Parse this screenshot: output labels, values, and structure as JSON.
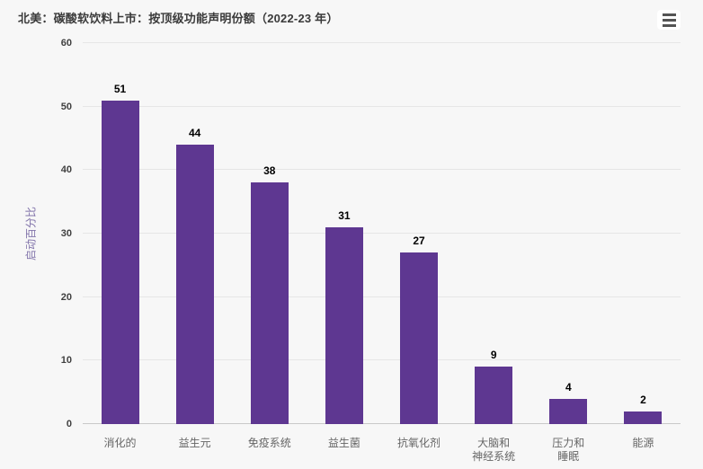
{
  "header": {
    "title": "北美：碳酸软饮料上市：按顶级功能声明份额（2022-23 年）",
    "menu_icon": "hamburger-icon"
  },
  "colors": {
    "background": "#f7f7f7",
    "bar": "#5e3791",
    "gridline": "#e6e6e6",
    "axis_line": "#c9c9c9",
    "title_text": "#3a3a3a",
    "y_tick_text": "#404040",
    "x_label_text": "#666666",
    "data_label_text": "#000000",
    "y_axis_title_text": "#8173aa"
  },
  "chart_data": {
    "type": "bar",
    "title": "北美：碳酸软饮料上市：按顶级功能声明份额（2022-23 年）",
    "categories": [
      "消化的",
      "益生元",
      "免疫系统",
      "益生菌",
      "抗氧化剂",
      "大脑和\n神经系统",
      "压力和\n睡眠",
      "能源"
    ],
    "values": [
      51,
      44,
      38,
      31,
      27,
      9,
      4,
      2
    ],
    "xlabel": "",
    "ylabel": "启动百分比",
    "ylim": [
      0,
      60
    ],
    "yticks": [
      0,
      10,
      20,
      30,
      40,
      50,
      60
    ],
    "grid": true,
    "legend": "none",
    "bar_color": "#5e3791",
    "data_labels": true
  }
}
